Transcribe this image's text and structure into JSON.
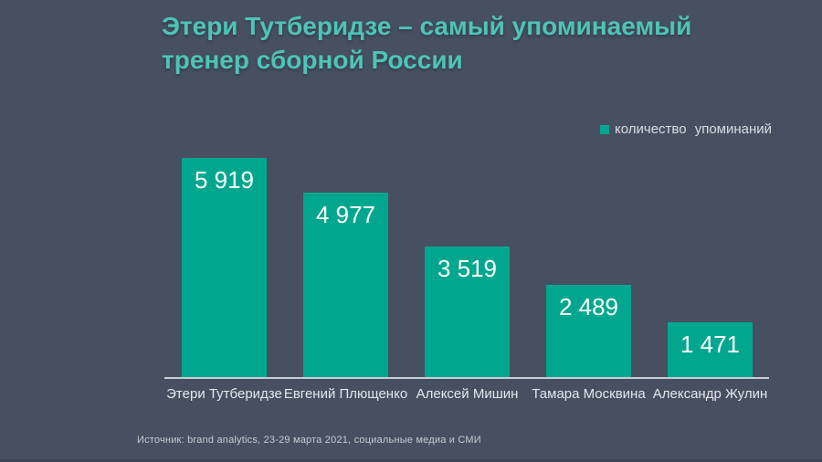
{
  "slide": {
    "title_lines": [
      "Этери Тутберидзе – самый упоминаемый",
      "тренер сборной России"
    ],
    "source": "Источник: brand analytics, 23-29 марта 2021, социальные медиа и СМИ"
  },
  "legend": {
    "label": "количество упоминаний"
  },
  "colors": {
    "background": "#465061",
    "bar": "#00A78E",
    "title": "#4EC4B8",
    "axis_line": "#C8CDD5",
    "value_label": "#FDFEFE",
    "category_label": "#E3E7EC"
  },
  "chart_data": {
    "type": "bar",
    "title": "Этери Тутберидзе – самый упоминаемый тренер сборной России",
    "series_name": "количество упоминаний",
    "categories": [
      "Этери Тутберидзе",
      "Евгений Плющенко",
      "Алексей Мишин",
      "Тамара Москвина",
      "Александр Жулин"
    ],
    "values": [
      5919,
      4977,
      3519,
      2489,
      1471
    ],
    "value_labels": [
      "5 919",
      "4 977",
      "3 519",
      "2 489",
      "1 471"
    ],
    "xlabel": "",
    "ylabel": "",
    "ylim": [
      0,
      5919
    ],
    "grid": false,
    "legend_position": "top-right",
    "data_labels": "inside-top"
  }
}
